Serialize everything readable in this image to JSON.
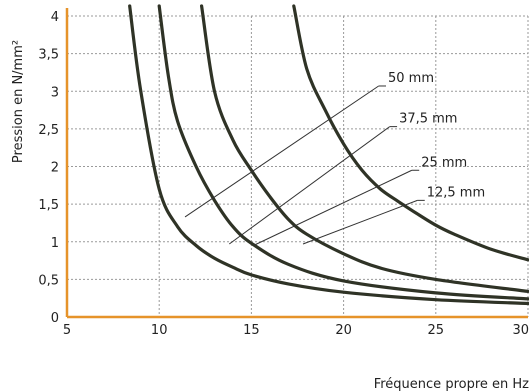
{
  "chart_data": {
    "type": "line",
    "title": "",
    "xlabel": "Fréquence propre en Hz",
    "ylabel": "Pression en N/mm²",
    "xlim": [
      5,
      30
    ],
    "ylim": [
      0,
      4
    ],
    "x_ticks": [
      "5",
      "10",
      "15",
      "20",
      "25",
      "30"
    ],
    "y_ticks": [
      "0",
      "0,5",
      "1",
      "1,5",
      "2",
      "2,5",
      "3",
      "3,5",
      "4"
    ],
    "grid": true,
    "series": [
      {
        "name": "50 mm",
        "x": [
          8.4,
          9,
          10,
          11,
          12,
          13,
          14,
          15,
          17,
          20,
          25,
          30
        ],
        "y": [
          4.0,
          3.0,
          1.7,
          1.2,
          0.95,
          0.78,
          0.66,
          0.56,
          0.44,
          0.33,
          0.23,
          0.18
        ]
      },
      {
        "name": "37,5 mm",
        "x": [
          10.0,
          10.5,
          11,
          12,
          13,
          14,
          15,
          17,
          20,
          25,
          30
        ],
        "y": [
          4.0,
          3.2,
          2.6,
          2.0,
          1.55,
          1.2,
          0.98,
          0.7,
          0.48,
          0.32,
          0.24
        ]
      },
      {
        "name": "25 mm",
        "x": [
          12.3,
          13,
          14,
          15,
          16,
          17,
          18,
          20,
          22,
          25,
          30
        ],
        "y": [
          4.0,
          3.0,
          2.35,
          1.95,
          1.6,
          1.3,
          1.1,
          0.84,
          0.65,
          0.5,
          0.34
        ]
      },
      {
        "name": "12,5 mm",
        "x": [
          17.3,
          18,
          19,
          20,
          21,
          22,
          23,
          24,
          25,
          26,
          28,
          30
        ],
        "y": [
          4.0,
          3.3,
          2.75,
          2.3,
          1.95,
          1.7,
          1.53,
          1.37,
          1.22,
          1.1,
          0.9,
          0.76
        ]
      }
    ],
    "annotations": [
      "50 mm",
      "37,5 mm",
      "25 mm",
      "12,5 mm"
    ],
    "colors": {
      "curve": "#2f3326",
      "axis": "#e6932a",
      "grid": "#9a9a9a",
      "leader": "#333333"
    }
  }
}
